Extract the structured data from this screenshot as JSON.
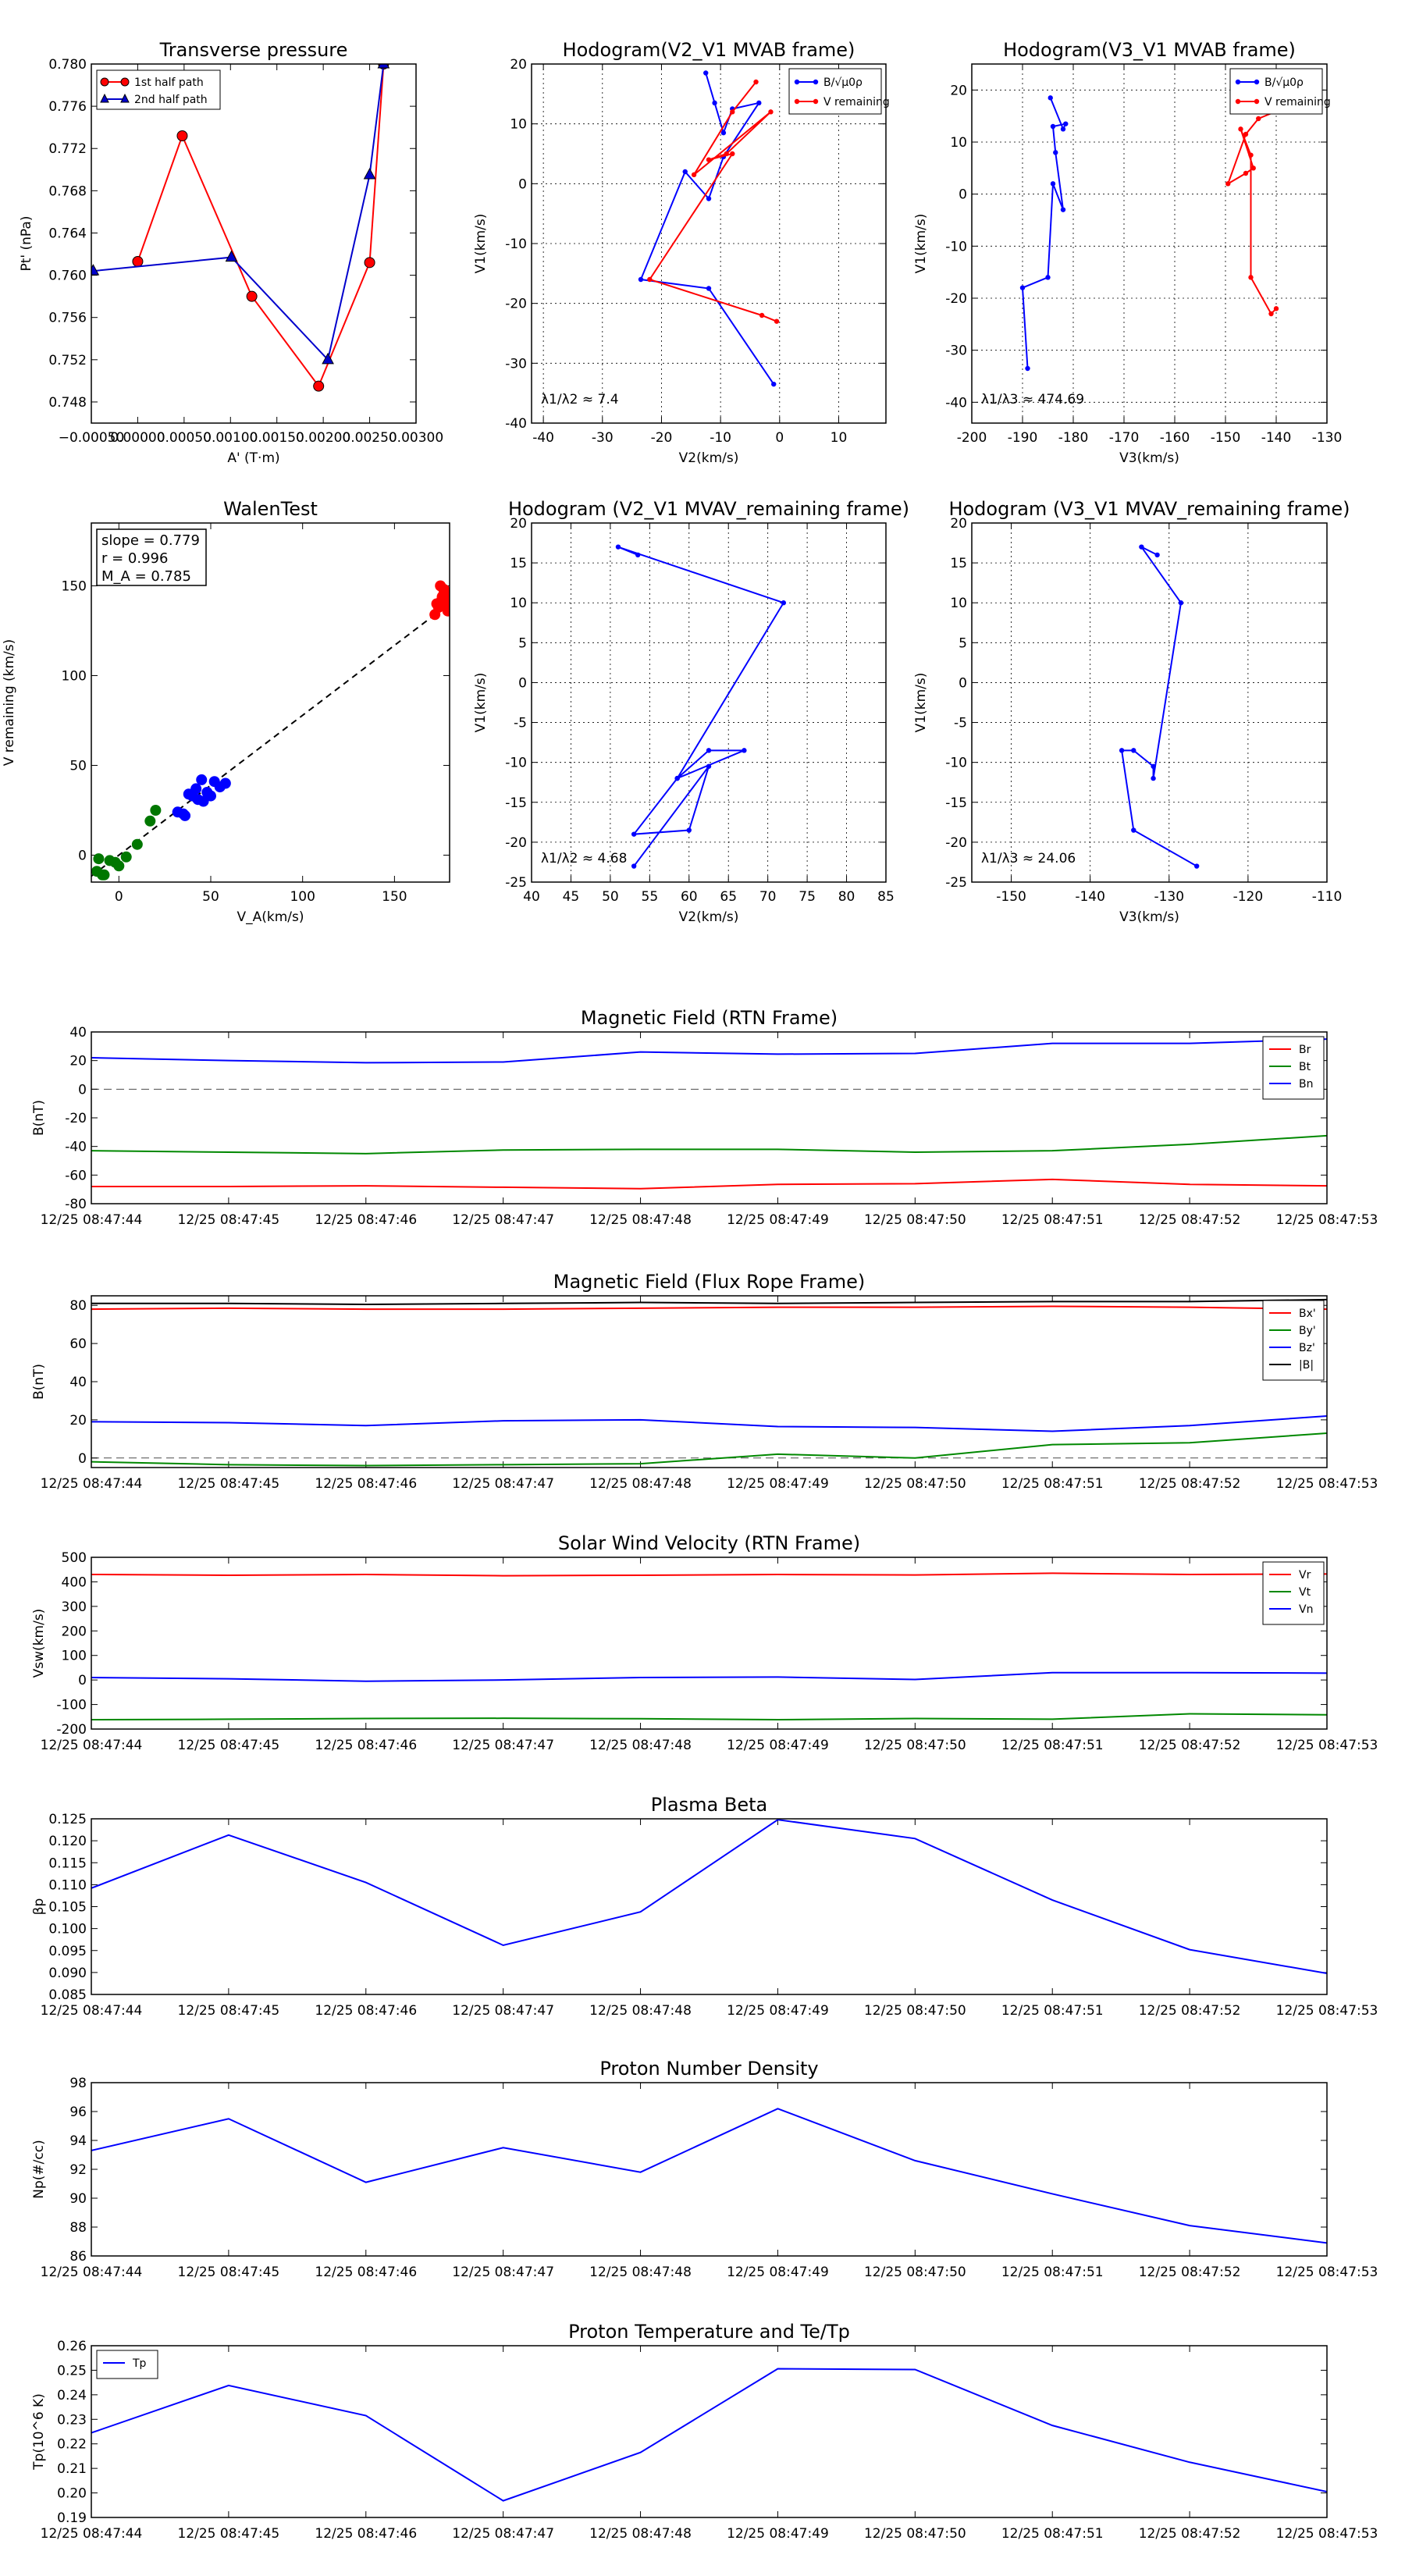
{
  "figure": {
    "time_ticks": [
      "12/25 08:47:44",
      "12/25 08:47:45",
      "12/25 08:47:46",
      "12/25 08:47:47",
      "12/25 08:47:48",
      "12/25 08:47:49",
      "12/25 08:47:50",
      "12/25 08:47:51",
      "12/25 08:47:52",
      "12/25 08:47:53"
    ]
  },
  "chart_data": [
    {
      "id": "tp",
      "type": "scatter-line",
      "title": "Transverse pressure",
      "xlabel": "A' (T·m)",
      "ylabel": "Pt' (nPa)",
      "xlim": [
        -0.0005,
        0.003
      ],
      "ylim": [
        0.746,
        0.78
      ],
      "xticks": [
        -0.0005,
        0.0,
        0.0005,
        0.001,
        0.0015,
        0.002,
        0.0025,
        0.003
      ],
      "xtick_labels": [
        "−0.00050",
        "0.00000",
        "0.00050",
        "0.00100",
        "0.00150",
        "0.00200",
        "0.00250",
        "0.00300"
      ],
      "yticks": [
        0.748,
        0.752,
        0.756,
        0.76,
        0.764,
        0.768,
        0.772,
        0.776,
        0.78
      ],
      "ytick_labels": [
        "0.748",
        "0.752",
        "0.756",
        "0.760",
        "0.764",
        "0.768",
        "0.772",
        "0.776",
        "0.780"
      ],
      "legend": "upper-left",
      "series": [
        {
          "name": "1st half path",
          "color": "#ff0000",
          "marker": "circle",
          "x": [
            0.00265,
            0.0025,
            0.00195,
            0.00123,
            0.00048,
            0.0
          ],
          "y": [
            0.78,
            0.7612,
            0.7495,
            0.758,
            0.7732,
            0.7613
          ]
        },
        {
          "name": "2nd half path",
          "color": "#0000cc",
          "marker": "triangle",
          "x": [
            -0.00048,
            0.00101,
            0.00205,
            0.0025,
            0.00265
          ],
          "y": [
            0.7604,
            0.7617,
            0.752,
            0.7695,
            0.78
          ]
        }
      ]
    },
    {
      "id": "h21",
      "type": "line",
      "title": "Hodogram(V2_V1 MVAB frame)",
      "xlabel": "V2(km/s)",
      "ylabel": "V1(km/s)",
      "xlim": [
        -42,
        18
      ],
      "ylim": [
        -40,
        20
      ],
      "xticks": [
        -40,
        -30,
        -20,
        -10,
        0,
        10
      ],
      "yticks": [
        -40,
        -30,
        -20,
        -10,
        0,
        10,
        20
      ],
      "annotation": "λ1/λ2 ≈ 7.4",
      "legend": "upper-right",
      "series": [
        {
          "name": "B/√μ0ρ",
          "color": "#0000ff",
          "x": [
            -12.5,
            -11,
            -9.5,
            -8,
            -3.5,
            -9.5,
            -12,
            -16,
            -23.5,
            -12,
            -1
          ],
          "y": [
            18.5,
            13.5,
            8.5,
            12.5,
            13.5,
            4.5,
            -2.5,
            2,
            -16,
            -17.5,
            -33.5
          ]
        },
        {
          "name": "V remaining",
          "color": "#ff0000",
          "x": [
            -4,
            -8,
            -14.5,
            -1.5,
            -9,
            -12,
            -8,
            -22,
            -3,
            -0.5
          ],
          "y": [
            17,
            12,
            1.5,
            12,
            5,
            4,
            5,
            -16,
            -22,
            -23
          ]
        }
      ]
    },
    {
      "id": "h31",
      "type": "line",
      "title": "Hodogram(V3_V1 MVAB frame)",
      "xlabel": "V3(km/s)",
      "ylabel": "V1(km/s)",
      "xlim": [
        -200,
        -130
      ],
      "ylim": [
        -44,
        25
      ],
      "xticks": [
        -200,
        -190,
        -180,
        -170,
        -160,
        -150,
        -140,
        -130
      ],
      "yticks": [
        -40,
        -30,
        -20,
        -10,
        0,
        10,
        20
      ],
      "annotation": "λ1/λ3 ≈ 474.69",
      "legend": "upper-right",
      "series": [
        {
          "name": "B/√μ0ρ",
          "color": "#0000ff",
          "x": [
            -184.5,
            -182,
            -181.5,
            -184,
            -183.5,
            -182,
            -184,
            -185,
            -190,
            -189
          ],
          "y": [
            18.5,
            12.5,
            13.5,
            13,
            8,
            -3,
            2,
            -16,
            -18,
            -33.5
          ]
        },
        {
          "name": "V remaining",
          "color": "#ff0000",
          "x": [
            -136,
            -143.5,
            -146,
            -149.5,
            -146,
            -144.5,
            -147,
            -145,
            -145,
            -141,
            -140
          ],
          "y": [
            17.5,
            14.5,
            11.5,
            2,
            4,
            5,
            12.5,
            7.5,
            -16,
            -23,
            -22
          ]
        }
      ]
    },
    {
      "id": "walen",
      "type": "scatter",
      "title": "WalenTest",
      "xlabel": "V_A(km/s)",
      "ylabel": "V remaining (km/s)",
      "xlim": [
        -15,
        180
      ],
      "ylim": [
        -15,
        185
      ],
      "xticks": [
        0,
        50,
        100,
        150
      ],
      "yticks": [
        0,
        50,
        100,
        150
      ],
      "fit_slope": 0.779,
      "stats": [
        "slope = 0.779",
        "r = 0.996",
        "M_A = 0.785"
      ],
      "series": [
        {
          "name": "green",
          "color": "#007700",
          "x": [
            -11,
            -8,
            -5,
            -2,
            0,
            4,
            10,
            17,
            20,
            -12,
            -9
          ],
          "y": [
            -2,
            -11,
            -3,
            -4,
            -6,
            -1,
            6,
            19,
            25,
            -9,
            -11
          ]
        },
        {
          "name": "blue",
          "color": "#0000ff",
          "x": [
            32,
            36,
            40,
            42,
            45,
            46,
            48,
            52,
            55,
            58,
            43,
            38,
            50,
            35
          ],
          "y": [
            24,
            22,
            33,
            37,
            42,
            30,
            35,
            41,
            38,
            40,
            31,
            34,
            33,
            23
          ]
        },
        {
          "name": "red",
          "color": "#ff0000",
          "x": [
            172,
            174,
            175,
            176,
            177,
            178,
            179,
            180,
            175,
            177,
            179,
            173,
            176,
            178
          ],
          "y": [
            134,
            138,
            141,
            144,
            147,
            142,
            137,
            145,
            150,
            148,
            136,
            140,
            143,
            139
          ]
        }
      ]
    },
    {
      "id": "h21r",
      "type": "line",
      "title": "Hodogram (V2_V1 MVAV_remaining frame)",
      "xlabel": "V2(km/s)",
      "ylabel": "V1(km/s)",
      "xlim": [
        40,
        85
      ],
      "ylim": [
        -25,
        20
      ],
      "xticks": [
        40,
        45,
        50,
        55,
        60,
        65,
        70,
        75,
        80,
        85
      ],
      "yticks": [
        -25,
        -20,
        -15,
        -10,
        -5,
        0,
        5,
        10,
        15,
        20
      ],
      "annotation": "λ1/λ2 ≈ 4.68",
      "series": [
        {
          "name": "blue",
          "color": "#0000ff",
          "x": [
            53.5,
            51,
            72,
            58.5,
            62.5,
            67,
            58.5,
            53,
            60,
            62.5,
            53
          ],
          "y": [
            16,
            17,
            10,
            -12,
            -8.5,
            -8.5,
            -12,
            -19,
            -18.5,
            -10.5,
            -23
          ]
        }
      ]
    },
    {
      "id": "h31r",
      "type": "line",
      "title": "Hodogram (V3_V1 MVAV_remaining frame)",
      "xlabel": "V3(km/s)",
      "ylabel": "V1(km/s)",
      "xlim": [
        -155,
        -110
      ],
      "ylim": [
        -25,
        20
      ],
      "xticks": [
        -150,
        -140,
        -130,
        -120,
        -110
      ],
      "yticks": [
        -25,
        -20,
        -15,
        -10,
        -5,
        0,
        5,
        10,
        15,
        20
      ],
      "annotation": "λ1/λ3 ≈ 24.06",
      "series": [
        {
          "name": "blue",
          "color": "#0000ff",
          "x": [
            -131.5,
            -133.5,
            -128.5,
            -132,
            -132,
            -134.5,
            -136,
            -134.5,
            -126.5
          ],
          "y": [
            16,
            17,
            10,
            -12,
            -10.5,
            -8.5,
            -8.5,
            -18.5,
            -23
          ]
        }
      ]
    },
    {
      "id": "mag_rtn",
      "type": "line",
      "title": "Magnetic Field (RTN Frame)",
      "ylabel": "B(nT)",
      "ylim": [
        -80,
        40
      ],
      "yticks": [
        -80,
        -60,
        -40,
        -20,
        0,
        20,
        40
      ],
      "x": [
        0,
        1,
        2,
        3,
        4,
        5,
        6,
        7,
        8,
        9
      ],
      "xlim": [
        0,
        9
      ],
      "zero_line": true,
      "legend": "right",
      "series": [
        {
          "name": "Br",
          "color": "#ff0000",
          "values": [
            -68,
            -68,
            -67.5,
            -68.5,
            -69.5,
            -66.5,
            -66,
            -63,
            -66.5,
            -67.5
          ]
        },
        {
          "name": "Bt",
          "color": "#008800",
          "values": [
            -43,
            -44,
            -45,
            -42.5,
            -42,
            -42,
            -44,
            -43,
            -38.5,
            -32.5
          ]
        },
        {
          "name": "Bn",
          "color": "#0000ff",
          "values": [
            22,
            20,
            18.5,
            19,
            26,
            24.5,
            25,
            32,
            32,
            35
          ]
        }
      ]
    },
    {
      "id": "mag_fr",
      "type": "line",
      "title": "Magnetic Field (Flux Rope Frame)",
      "ylabel": "B(nT)",
      "ylim": [
        -5,
        85
      ],
      "yticks": [
        0,
        20,
        40,
        60,
        80
      ],
      "x": [
        0,
        1,
        2,
        3,
        4,
        5,
        6,
        7,
        8,
        9
      ],
      "xlim": [
        0,
        9
      ],
      "zero_line": true,
      "legend": "right",
      "series": [
        {
          "name": "Bx'",
          "color": "#ff0000",
          "values": [
            78,
            78.5,
            78,
            78,
            78.5,
            79,
            79,
            79.5,
            79,
            78
          ]
        },
        {
          "name": "By'",
          "color": "#008800",
          "values": [
            -2,
            -3.5,
            -4,
            -3.5,
            -3,
            2,
            0,
            7,
            8,
            13
          ]
        },
        {
          "name": "Bz'",
          "color": "#0000ff",
          "values": [
            19,
            18.5,
            17,
            19.5,
            20,
            16.5,
            16,
            14,
            17,
            22
          ]
        },
        {
          "name": "|B|",
          "color": "#000000",
          "values": [
            81,
            81,
            80.5,
            81,
            81.5,
            81,
            81.5,
            82,
            82,
            83
          ]
        }
      ]
    },
    {
      "id": "vsw",
      "type": "line",
      "title": "Solar Wind Velocity (RTN Frame)",
      "ylabel": "Vsw(km/s)",
      "ylim": [
        -200,
        500
      ],
      "yticks": [
        -200,
        -100,
        0,
        100,
        200,
        300,
        400,
        500
      ],
      "x": [
        0,
        1,
        2,
        3,
        4,
        5,
        6,
        7,
        8,
        9
      ],
      "xlim": [
        0,
        9
      ],
      "legend": "right",
      "series": [
        {
          "name": "Vr",
          "color": "#ff0000",
          "values": [
            430,
            427,
            430,
            425,
            427,
            430,
            428,
            435,
            430,
            432
          ]
        },
        {
          "name": "Vt",
          "color": "#008800",
          "values": [
            -162,
            -160,
            -157,
            -156,
            -158,
            -162,
            -157,
            -160,
            -138,
            -142
          ]
        },
        {
          "name": "Vn",
          "color": "#0000ff",
          "values": [
            10,
            5,
            -5,
            0,
            10,
            12,
            2,
            30,
            30,
            28
          ]
        }
      ]
    },
    {
      "id": "beta",
      "type": "line",
      "title": "Plasma Beta",
      "ylabel": "βp",
      "ylim": [
        0.085,
        0.125
      ],
      "yticks": [
        0.085,
        0.09,
        0.095,
        0.1,
        0.105,
        0.11,
        0.115,
        0.12,
        0.125
      ],
      "ytick_labels": [
        "0.085",
        "0.090",
        "0.095",
        "0.100",
        "0.105",
        "0.110",
        "0.115",
        "0.120",
        "0.125"
      ],
      "x": [
        0,
        1,
        2,
        3,
        4,
        5,
        6,
        7,
        8,
        9
      ],
      "xlim": [
        0,
        9
      ],
      "series": [
        {
          "name": "beta",
          "color": "#0000ff",
          "values": [
            0.1092,
            0.1213,
            0.1105,
            0.0962,
            0.1038,
            0.1248,
            0.1205,
            0.1065,
            0.0952,
            0.0898
          ]
        }
      ]
    },
    {
      "id": "np",
      "type": "line",
      "title": "Proton Number Density",
      "ylabel": "Np(#/cc)",
      "ylim": [
        86,
        98
      ],
      "yticks": [
        86,
        88,
        90,
        92,
        94,
        96,
        98
      ],
      "x": [
        0,
        1,
        2,
        3,
        4,
        5,
        6,
        7,
        8,
        9
      ],
      "xlim": [
        0,
        9
      ],
      "series": [
        {
          "name": "Np",
          "color": "#0000ff",
          "values": [
            93.3,
            95.5,
            91.1,
            93.5,
            91.8,
            96.2,
            92.6,
            90.3,
            88.1,
            86.9
          ]
        }
      ]
    },
    {
      "id": "tp_temp",
      "type": "line",
      "title": "Proton Temperature and Te/Tp",
      "ylabel": "Tp(10^6 K)",
      "ylim": [
        0.19,
        0.26
      ],
      "yticks": [
        0.19,
        0.2,
        0.21,
        0.22,
        0.23,
        0.24,
        0.25,
        0.26
      ],
      "ytick_labels": [
        "0.19",
        "0.20",
        "0.21",
        "0.22",
        "0.23",
        "0.24",
        "0.25",
        "0.26"
      ],
      "x": [
        0,
        1,
        2,
        3,
        4,
        5,
        6,
        7,
        8,
        9
      ],
      "xlim": [
        0,
        9
      ],
      "legend": "upper-left",
      "series": [
        {
          "name": "Tp",
          "color": "#0000ff",
          "values": [
            0.2245,
            0.2438,
            0.2315,
            0.1968,
            0.2165,
            0.2506,
            0.2503,
            0.2275,
            0.2125,
            0.2005
          ]
        }
      ]
    }
  ]
}
